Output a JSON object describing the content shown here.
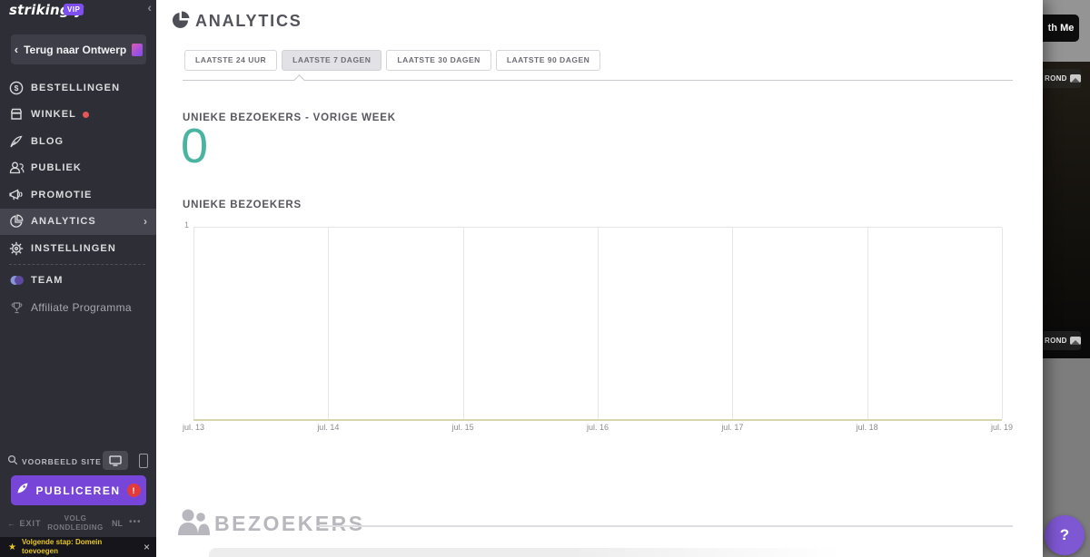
{
  "colors": {
    "accent_purple": "#7746d8",
    "teal": "#4bb4a1",
    "alert_red": "#e23b3b",
    "notification_yellow": "#e5c628",
    "sidebar_bg": "#2e2e36"
  },
  "icons": {
    "chevron_left": "‹",
    "chevron_right": "›",
    "caret_down": "▾",
    "arrow_left": "←",
    "star": "★",
    "close": "×",
    "more": "•••",
    "help": "?",
    "alert": "!"
  },
  "sidebar": {
    "logo": "strikingly",
    "vip_badge": "VIP",
    "back_button": "Terug naar Ontwerp",
    "menu": [
      {
        "label": "BESTELLINGEN",
        "icon": "dollar-circle-icon",
        "active": false,
        "has_dot": false
      },
      {
        "label": "WINKEL",
        "icon": "storefront-icon",
        "active": false,
        "has_dot": true
      },
      {
        "label": "BLOG",
        "icon": "quill-icon",
        "active": false,
        "has_dot": false
      },
      {
        "label": "PUBLIEK",
        "icon": "people-icon",
        "active": false,
        "has_dot": false
      },
      {
        "label": "PROMOTIE",
        "icon": "megaphone-icon",
        "active": false,
        "has_dot": false
      },
      {
        "label": "ANALYTICS",
        "icon": "pie-chart-icon",
        "active": true,
        "has_dot": false
      },
      {
        "label": "INSTELLINGEN",
        "icon": "gear-icon",
        "active": false,
        "has_dot": false
      }
    ],
    "secondary_menu": [
      {
        "label": "TEAM",
        "icon": "team-avatars-icon"
      },
      {
        "label": "Affiliate Programma",
        "icon": "trophy-icon"
      }
    ],
    "site_preview_label": "VOORBEELD SITE",
    "publish_button": "PUBLICEREN",
    "footer": {
      "exit": "EXIT",
      "tour": "VOLG RONDLEIDING",
      "lang": "NL"
    },
    "notification": "Volgende stap: Domein toevoegen"
  },
  "main": {
    "title": "ANALYTICS",
    "tabs": [
      {
        "label": "LAATSTE 24 UUR",
        "active": false
      },
      {
        "label": "LAATSTE 7 DAGEN",
        "active": true
      },
      {
        "label": "LAATSTE 30 DAGEN",
        "active": false
      },
      {
        "label": "LAATSTE 90 DAGEN",
        "active": false
      }
    ],
    "stat_label": "UNIEKE BEZOEKERS - VORIGE WEEK",
    "stat_value": "0",
    "chart_heading": "UNIEKE BEZOEKERS",
    "visitors_heading": "BEZOEKERS"
  },
  "chart_data": {
    "type": "line",
    "title": "UNIEKE BEZOEKERS",
    "x": [
      "jul. 13",
      "jul. 14",
      "jul. 15",
      "jul. 16",
      "jul. 17",
      "jul. 18",
      "jul. 19"
    ],
    "values": [
      0,
      0,
      0,
      0,
      0,
      0,
      0
    ],
    "xlabel": "",
    "ylabel": "",
    "ylim": [
      0,
      1
    ],
    "yticks": [
      "1"
    ],
    "grid": "vertical",
    "legend": "none",
    "note": "empty plot area - no visitor data in range"
  },
  "preview_pane": {
    "chat_button": "th Me",
    "background_badge_top": "ROND",
    "background_badge_bottom": "ROND"
  }
}
